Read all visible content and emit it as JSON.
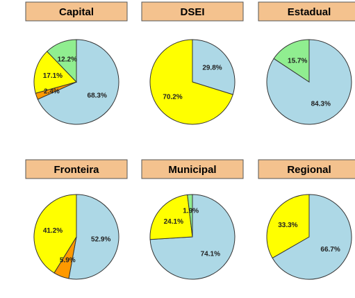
{
  "chart_data": [
    {
      "type": "pie",
      "title": "Capital",
      "slices": [
        {
          "label": "68.3%",
          "value": 68.3,
          "color": "#add8e6"
        },
        {
          "label": "2.4%",
          "value": 2.4,
          "color": "#ff9900"
        },
        {
          "label": "17.1%",
          "value": 17.1,
          "color": "#ffff00"
        },
        {
          "label": "12.2%",
          "value": 12.2,
          "color": "#90ee90"
        }
      ]
    },
    {
      "type": "pie",
      "title": "DSEI",
      "slices": [
        {
          "label": "29.8%",
          "value": 29.8,
          "color": "#add8e6"
        },
        {
          "label": "70.2%",
          "value": 70.2,
          "color": "#ffff00"
        }
      ]
    },
    {
      "type": "pie",
      "title": "Estadual",
      "slices": [
        {
          "label": "84.3%",
          "value": 84.3,
          "color": "#add8e6"
        },
        {
          "label": "15.7%",
          "value": 15.7,
          "color": "#90ee90"
        }
      ]
    },
    {
      "type": "pie",
      "title": "Fronteira",
      "slices": [
        {
          "label": "52.9%",
          "value": 52.9,
          "color": "#add8e6"
        },
        {
          "label": "5.9%",
          "value": 5.9,
          "color": "#ff9900"
        },
        {
          "label": "41.2%",
          "value": 41.2,
          "color": "#ffff00"
        }
      ]
    },
    {
      "type": "pie",
      "title": "Municipal",
      "slices": [
        {
          "label": "74.1%",
          "value": 74.1,
          "color": "#add8e6"
        },
        {
          "label": "24.1%",
          "value": 24.1,
          "color": "#ffff00"
        },
        {
          "label": "1.9%",
          "value": 1.9,
          "color": "#90ee90"
        }
      ]
    },
    {
      "type": "pie",
      "title": "Regional",
      "slices": [
        {
          "label": "66.7%",
          "value": 66.7,
          "color": "#add8e6"
        },
        {
          "label": "33.3%",
          "value": 33.3,
          "color": "#ffff00"
        }
      ]
    }
  ],
  "colors": {
    "title_strip": "#f4c28e",
    "slice_border": "#333333"
  }
}
